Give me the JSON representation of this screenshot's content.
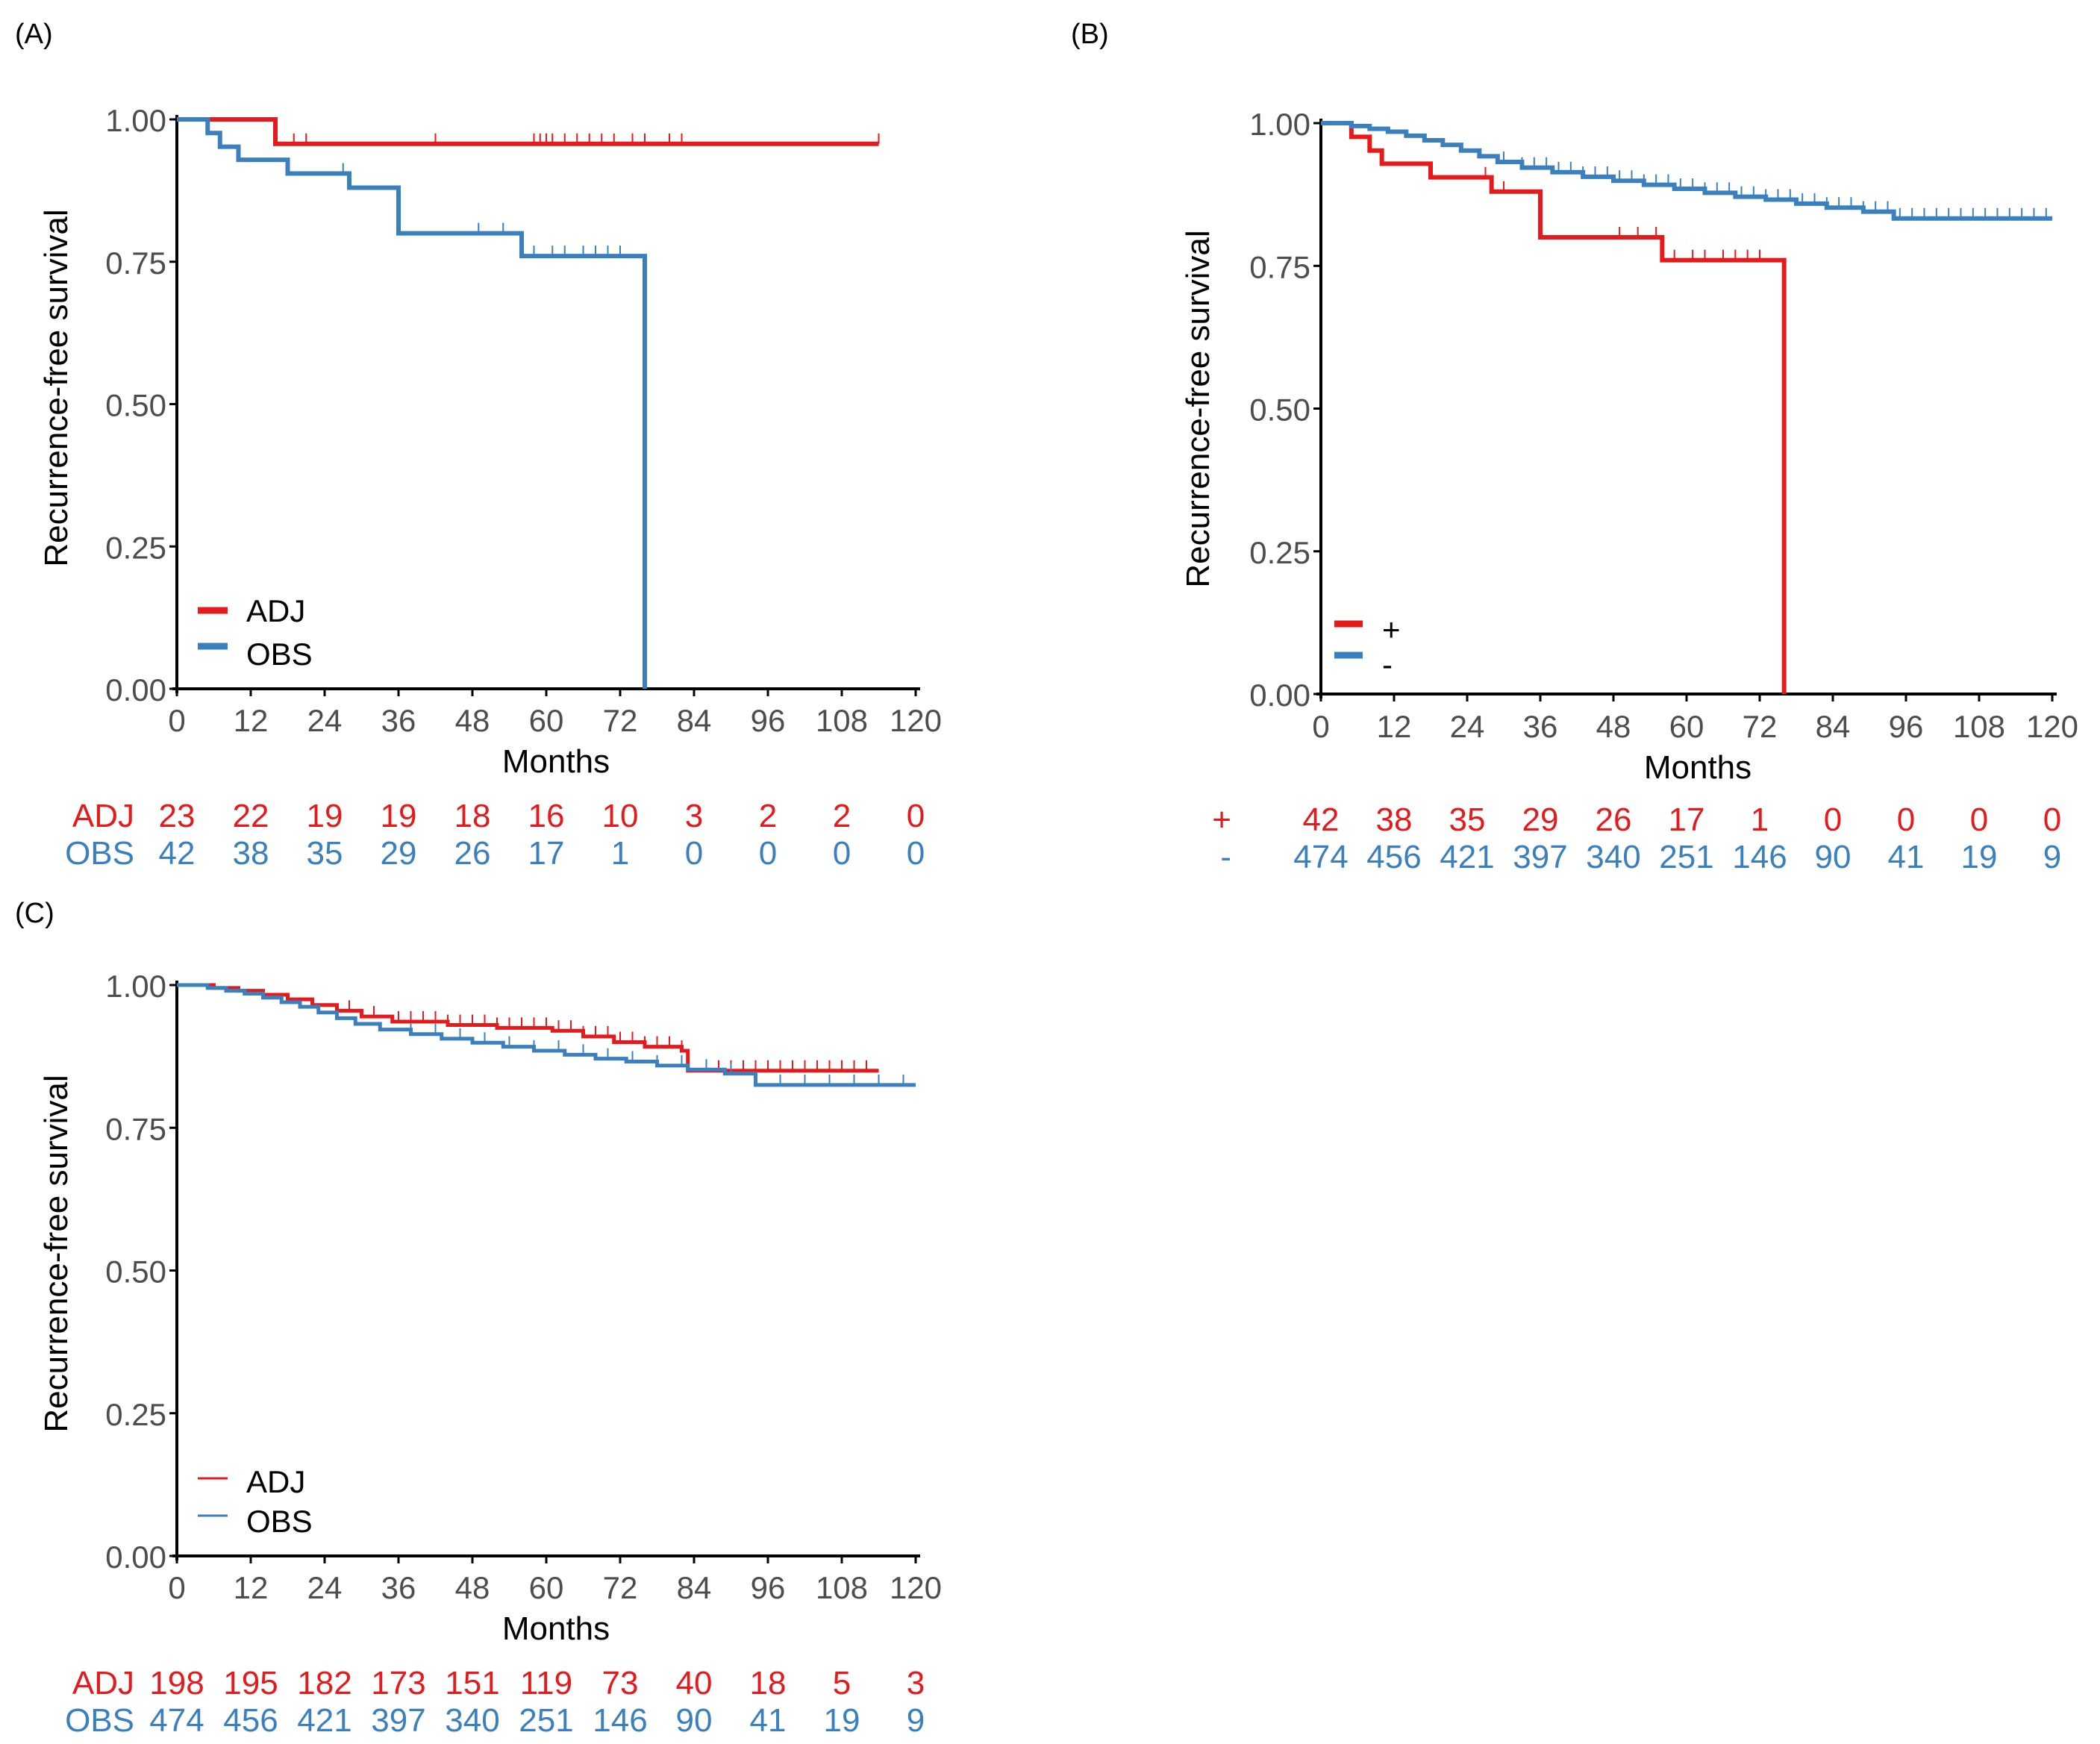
{
  "colors": {
    "red": "#E41A1C",
    "blue": "#3A80BE",
    "axis": "#000000",
    "tick_text": "#4D4D4D"
  },
  "chart_data": [
    {
      "id": "A",
      "panel_label": "(A)",
      "type": "line",
      "subtype": "kaplan-meier",
      "xlabel": "Months",
      "ylabel": "Recurrence-free survival",
      "xlim": [
        0,
        120
      ],
      "ylim": [
        0,
        1
      ],
      "x_ticks": [
        0,
        12,
        24,
        36,
        48,
        60,
        72,
        84,
        96,
        108,
        120
      ],
      "x_tick_labels": [
        "0",
        "12",
        "24",
        "36",
        "48",
        "60",
        "72",
        "84",
        "96",
        "108",
        "120"
      ],
      "y_ticks": [
        0,
        0.25,
        0.5,
        0.75,
        1
      ],
      "y_tick_labels": [
        "0.00",
        "0.25",
        "0.50",
        "0.75",
        "1.00"
      ],
      "legend": {
        "position": "bottom-left",
        "style": "thick"
      },
      "series": [
        {
          "name": "ADJ",
          "color": "red",
          "steps": [
            [
              0,
              1
            ],
            [
              16,
              0.957
            ],
            [
              114,
              0.957
            ]
          ],
          "censors": [
            19,
            21,
            42,
            58,
            59,
            60,
            61,
            63,
            65,
            67,
            69,
            71,
            74,
            76,
            80,
            82,
            114
          ]
        },
        {
          "name": "OBS",
          "color": "blue",
          "steps": [
            [
              0,
              1
            ],
            [
              5,
              0.976
            ],
            [
              7,
              0.952
            ],
            [
              10,
              0.929
            ],
            [
              18,
              0.905
            ],
            [
              28,
              0.88
            ],
            [
              36,
              0.8
            ],
            [
              56,
              0.76
            ],
            [
              76,
              0
            ]
          ],
          "censors": [
            27,
            49,
            53,
            58,
            61,
            63,
            66,
            68,
            70,
            72
          ]
        }
      ],
      "risk_table": {
        "times": [
          0,
          12,
          24,
          36,
          48,
          60,
          72,
          84,
          96,
          108,
          120
        ],
        "rows": [
          {
            "label": "ADJ",
            "color": "red",
            "values": [
              "23",
              "22",
              "19",
              "19",
              "18",
              "16",
              "10",
              "3",
              "2",
              "2",
              "0"
            ]
          },
          {
            "label": "OBS",
            "color": "blue",
            "values": [
              "42",
              "38",
              "35",
              "29",
              "26",
              "17",
              "1",
              "0",
              "0",
              "0",
              "0"
            ]
          }
        ]
      }
    },
    {
      "id": "B",
      "panel_label": "(B)",
      "type": "line",
      "subtype": "kaplan-meier",
      "xlabel": "Months",
      "ylabel": "Recurrence-free survival",
      "xlim": [
        0,
        120
      ],
      "ylim": [
        0,
        1
      ],
      "x_ticks": [
        0,
        12,
        24,
        36,
        48,
        60,
        72,
        84,
        96,
        108,
        120
      ],
      "x_tick_labels": [
        "0",
        "12",
        "24",
        "36",
        "48",
        "60",
        "72",
        "84",
        "96",
        "108",
        "120"
      ],
      "y_ticks": [
        0,
        0.25,
        0.5,
        0.75,
        1
      ],
      "y_tick_labels": [
        "0.00",
        "0.25",
        "0.50",
        "0.75",
        "1.00"
      ],
      "legend": {
        "position": "bottom-left",
        "style": "thick"
      },
      "series": [
        {
          "name": "+",
          "color": "red",
          "steps": [
            [
              0,
              1
            ],
            [
              5,
              0.976
            ],
            [
              8,
              0.952
            ],
            [
              10,
              0.929
            ],
            [
              18,
              0.905
            ],
            [
              28,
              0.88
            ],
            [
              36,
              0.8
            ],
            [
              56,
              0.76
            ],
            [
              76,
              0
            ]
          ],
          "censors": [
            27,
            30,
            49,
            52,
            55,
            58,
            61,
            63,
            66,
            68,
            70,
            72
          ]
        },
        {
          "name": "-",
          "color": "blue",
          "steps": [
            [
              0,
              1
            ],
            [
              5,
              0.995
            ],
            [
              8,
              0.99
            ],
            [
              11,
              0.985
            ],
            [
              14,
              0.978
            ],
            [
              17,
              0.97
            ],
            [
              20,
              0.962
            ],
            [
              23,
              0.952
            ],
            [
              26,
              0.942
            ],
            [
              29,
              0.932
            ],
            [
              33,
              0.922
            ],
            [
              38,
              0.914
            ],
            [
              43,
              0.906
            ],
            [
              48,
              0.899
            ],
            [
              53,
              0.892
            ],
            [
              58,
              0.885
            ],
            [
              63,
              0.878
            ],
            [
              68,
              0.871
            ],
            [
              73,
              0.866
            ],
            [
              78,
              0.859
            ],
            [
              83,
              0.852
            ],
            [
              89,
              0.845
            ],
            [
              94,
              0.833
            ],
            [
              120,
              0.833
            ]
          ],
          "censors": [
            30,
            33,
            35,
            37,
            39,
            41,
            43,
            45,
            47,
            49,
            51,
            53,
            55,
            57,
            59,
            61,
            63,
            65,
            67,
            69,
            71,
            73,
            75,
            77,
            79,
            81,
            83,
            85,
            87,
            89,
            91,
            93,
            95,
            97,
            99,
            101,
            103,
            105,
            107,
            109,
            111,
            113,
            115,
            117,
            119
          ]
        }
      ],
      "risk_table": {
        "times": [
          0,
          12,
          24,
          36,
          48,
          60,
          72,
          84,
          96,
          108,
          120
        ],
        "rows": [
          {
            "label": "+",
            "color": "red",
            "values": [
              "42",
              "38",
              "35",
              "29",
              "26",
              "17",
              "1",
              "0",
              "0",
              "0",
              "0"
            ]
          },
          {
            "label": "-",
            "color": "blue",
            "values": [
              "474",
              "456",
              "421",
              "397",
              "340",
              "251",
              "146",
              "90",
              "41",
              "19",
              "9"
            ]
          }
        ]
      }
    },
    {
      "id": "C",
      "panel_label": "(C)",
      "type": "line",
      "subtype": "kaplan-meier",
      "xlabel": "Months",
      "ylabel": "Recurrence-free survival",
      "xlim": [
        0,
        120
      ],
      "ylim": [
        0,
        1
      ],
      "x_ticks": [
        0,
        12,
        24,
        36,
        48,
        60,
        72,
        84,
        96,
        108,
        120
      ],
      "x_tick_labels": [
        "0",
        "12",
        "24",
        "36",
        "48",
        "60",
        "72",
        "84",
        "96",
        "108",
        "120"
      ],
      "y_ticks": [
        0,
        0.25,
        0.5,
        0.75,
        1
      ],
      "y_tick_labels": [
        "0.00",
        "0.25",
        "0.50",
        "0.75",
        "1.00"
      ],
      "legend": {
        "position": "bottom-left",
        "style": "thin"
      },
      "series": [
        {
          "name": "ADJ",
          "color": "red",
          "steps": [
            [
              0,
              1
            ],
            [
              6,
              0.995
            ],
            [
              10,
              0.99
            ],
            [
              14,
              0.983
            ],
            [
              18,
              0.975
            ],
            [
              22,
              0.965
            ],
            [
              26,
              0.955
            ],
            [
              30,
              0.945
            ],
            [
              35,
              0.936
            ],
            [
              44,
              0.93
            ],
            [
              52,
              0.925
            ],
            [
              61,
              0.92
            ],
            [
              66,
              0.91
            ],
            [
              71,
              0.9
            ],
            [
              76,
              0.892
            ],
            [
              82,
              0.885
            ],
            [
              83,
              0.85
            ],
            [
              114,
              0.85
            ]
          ],
          "censors": [
            28,
            32,
            36,
            38,
            40,
            42,
            44,
            46,
            48,
            50,
            52,
            54,
            56,
            58,
            60,
            62,
            64,
            66,
            68,
            70,
            72,
            74,
            76,
            78,
            80,
            82,
            86,
            88,
            90,
            92,
            94,
            96,
            98,
            100,
            102,
            104,
            106,
            108,
            110,
            112
          ]
        },
        {
          "name": "OBS",
          "color": "blue",
          "steps": [
            [
              0,
              1
            ],
            [
              5,
              0.995
            ],
            [
              8,
              0.99
            ],
            [
              11,
              0.985
            ],
            [
              14,
              0.978
            ],
            [
              17,
              0.97
            ],
            [
              20,
              0.962
            ],
            [
              23,
              0.952
            ],
            [
              26,
              0.942
            ],
            [
              29,
              0.932
            ],
            [
              33,
              0.922
            ],
            [
              38,
              0.914
            ],
            [
              43,
              0.906
            ],
            [
              48,
              0.899
            ],
            [
              53,
              0.892
            ],
            [
              58,
              0.885
            ],
            [
              63,
              0.878
            ],
            [
              68,
              0.871
            ],
            [
              73,
              0.866
            ],
            [
              78,
              0.859
            ],
            [
              83,
              0.852
            ],
            [
              89,
              0.845
            ],
            [
              94,
              0.825
            ],
            [
              120,
              0.825
            ]
          ],
          "censors": [
            38,
            42,
            46,
            50,
            54,
            58,
            62,
            66,
            70,
            74,
            78,
            82,
            86,
            90,
            94,
            98,
            102,
            106,
            110,
            114,
            118
          ]
        }
      ],
      "risk_table": {
        "times": [
          0,
          12,
          24,
          36,
          48,
          60,
          72,
          84,
          96,
          108,
          120
        ],
        "rows": [
          {
            "label": "ADJ",
            "color": "red",
            "values": [
              "198",
              "195",
              "182",
              "173",
              "151",
              "119",
              "73",
              "40",
              "18",
              "5",
              "3"
            ]
          },
          {
            "label": "OBS",
            "color": "blue",
            "values": [
              "474",
              "456",
              "421",
              "397",
              "340",
              "251",
              "146",
              "90",
              "41",
              "19",
              "9"
            ]
          }
        ]
      }
    }
  ]
}
